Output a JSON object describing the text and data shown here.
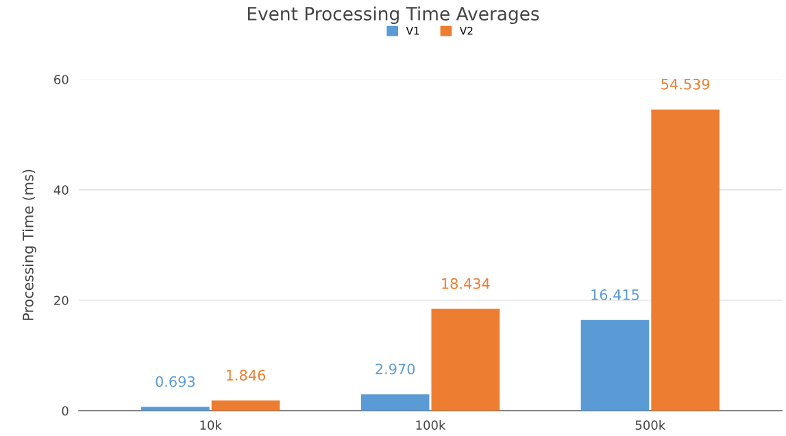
{
  "chart_data": {
    "type": "bar",
    "title": "Event Processing Time Averages",
    "ylabel": "Processing Time (ms)",
    "categories": [
      "10k",
      "100k",
      "500k"
    ],
    "series": [
      {
        "name": "V1",
        "color": "#5b9bd5",
        "values": [
          0.693,
          2.97,
          16.415
        ],
        "value_labels": [
          "0.693",
          "2.970",
          "16.415"
        ]
      },
      {
        "name": "V2",
        "color": "#ed7d31",
        "values": [
          1.846,
          18.434,
          54.539
        ],
        "value_labels": [
          "1.846",
          "18.434",
          "54.539"
        ]
      }
    ],
    "ylim": [
      0,
      60
    ],
    "yticks": [
      0,
      20,
      40,
      60
    ],
    "grid": "y",
    "legend": "top"
  }
}
